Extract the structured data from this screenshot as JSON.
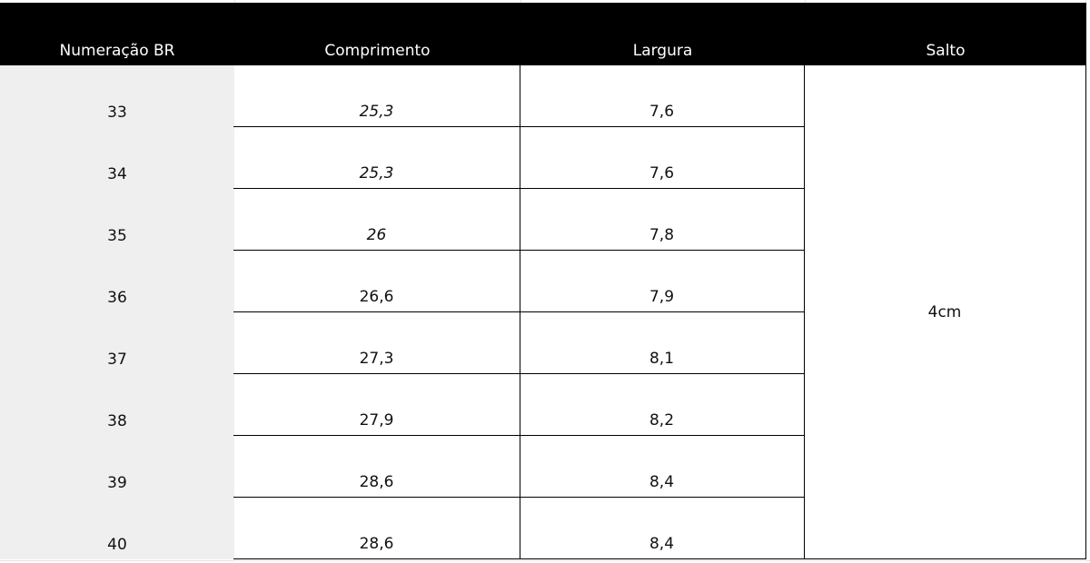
{
  "table": {
    "headers": [
      "Numeração BR",
      "Comprimento",
      "Largura",
      "Salto"
    ],
    "rows": [
      [
        "33",
        "25,3",
        "7,6"
      ],
      [
        "34",
        "25,3",
        "7,6"
      ],
      [
        "35",
        "26",
        "7,8"
      ],
      [
        "36",
        "26,6",
        "7,9"
      ],
      [
        "37",
        "27,3",
        "8,1"
      ],
      [
        "38",
        "27,9",
        "8,2"
      ],
      [
        "39",
        "28,6",
        "8,4"
      ],
      [
        "40",
        "28,6",
        "8,4"
      ]
    ],
    "salto": "4cm"
  }
}
